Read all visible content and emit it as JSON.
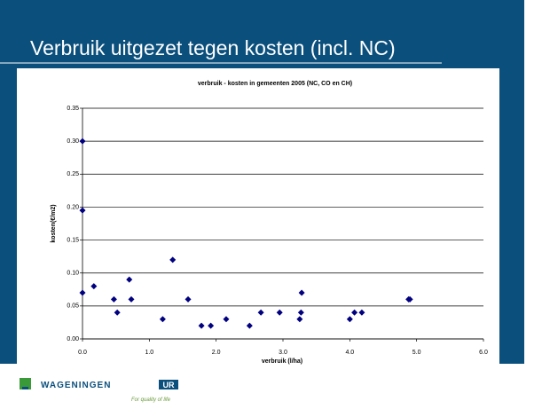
{
  "slide": {
    "title": "Verbruik uitgezet tegen kosten (incl. NC)",
    "logo_name": "WAGENINGEN",
    "logo_badge": "UR",
    "logo_tagline": "For quality of life"
  },
  "chart_data": {
    "type": "scatter",
    "title": "verbruik - kosten in gemeenten 2005 (NC, CO en CH)",
    "x_label": "verbruik (l/ha)",
    "y_label": "kosten(€/m2)",
    "color": "#000080",
    "grid": true,
    "series": [
      {
        "x": [
          0,
          0,
          0,
          0.17,
          0.47,
          0.52,
          0.7,
          0.73,
          1.2,
          1.35,
          1.58,
          1.78,
          1.92,
          2.15,
          2.5,
          2.67,
          2.95,
          3.25,
          3.27,
          3.28,
          4.0,
          4.07,
          4.18,
          4.88,
          4.9
        ],
        "values": [
          0.3,
          0.195,
          0.07,
          0.08,
          0.06,
          0.04,
          0.09,
          0.06,
          0.03,
          0.12,
          0.06,
          0.02,
          0.02,
          0.03,
          0.02,
          0.04,
          0.04,
          0.03,
          0.04,
          0.07,
          0.03,
          0.04,
          0.04,
          0.06,
          0.06
        ]
      }
    ],
    "xlim": [
      0,
      6
    ],
    "ylim": [
      0,
      0.35
    ],
    "xticks": [
      {
        "value": 0,
        "label": "0.0"
      },
      {
        "value": 1,
        "label": "1.0"
      },
      {
        "value": 2,
        "label": "2.0"
      },
      {
        "value": 3,
        "label": "3.0"
      },
      {
        "value": 4,
        "label": "4.0"
      },
      {
        "value": 5,
        "label": "5.0"
      },
      {
        "value": 6,
        "label": "6.0"
      }
    ],
    "yticks": [
      {
        "value": 0,
        "label": "0.00"
      },
      {
        "value": 0.05,
        "label": "0.05"
      },
      {
        "value": 0.1,
        "label": "0.10"
      },
      {
        "value": 0.15,
        "label": "0.15"
      },
      {
        "value": 0.2,
        "label": "0.20"
      },
      {
        "value": 0.25,
        "label": "0.25"
      },
      {
        "value": 0.3,
        "label": "0.30"
      },
      {
        "value": 0.35,
        "label": "0.35"
      }
    ]
  }
}
